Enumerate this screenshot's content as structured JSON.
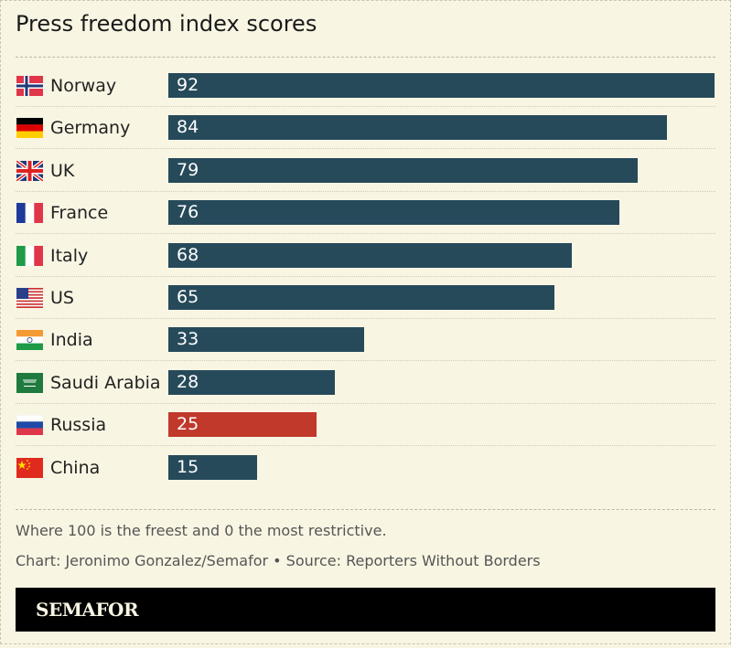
{
  "chart_data": {
    "type": "bar",
    "orientation": "horizontal",
    "title": "Press freedom index scores",
    "categories": [
      "Norway",
      "Germany",
      "UK",
      "France",
      "Italy",
      "US",
      "India",
      "Saudi Arabia",
      "Russia",
      "China"
    ],
    "values": [
      92,
      84,
      79,
      76,
      68,
      65,
      33,
      28,
      25,
      15
    ],
    "flags": [
      "norway-flag-icon",
      "germany-flag-icon",
      "uk-flag-icon",
      "france-flag-icon",
      "italy-flag-icon",
      "us-flag-icon",
      "india-flag-icon",
      "saudi-arabia-flag-icon",
      "russia-flag-icon",
      "china-flag-icon"
    ],
    "bar_color": "#264a5a",
    "highlight_color": "#c0392b",
    "highlight_category": "Russia",
    "data_labels": true,
    "grid": false
  },
  "note": "Where 100 is the freest and 0 the most restrictive.",
  "credit": "Chart: Jeronimo Gonzalez/Semafor • Source: Reporters Without Borders",
  "logo": "SEMAFOR"
}
